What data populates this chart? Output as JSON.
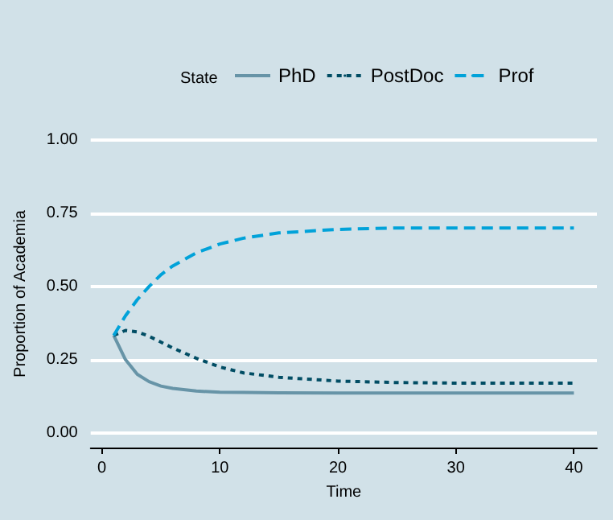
{
  "chart_data": {
    "type": "line",
    "xlabel": "Time",
    "ylabel": "Proportion of Academia",
    "legend_title": "State",
    "legend": "top",
    "grid": "y",
    "marker": "none",
    "xlim": [
      -0.95,
      41.95
    ],
    "xticks": [
      0,
      10,
      20,
      30,
      40
    ],
    "ylim": [
      -0.05,
      1
    ],
    "yticks": [
      {
        "value": 0,
        "label": "0.00"
      },
      {
        "value": 0.25,
        "label": "0.25"
      },
      {
        "value": 0.5,
        "label": "0.50"
      },
      {
        "value": 0.75,
        "label": "0.75"
      },
      {
        "value": 1,
        "label": "1.00"
      }
    ],
    "x": [
      1,
      2,
      3,
      4,
      5,
      6,
      8,
      10,
      12,
      15,
      20,
      25,
      30,
      40
    ],
    "series": [
      {
        "name": "PhD",
        "color": "#6794a7",
        "line_style": "solid",
        "values": [
          0.333,
          0.25,
          0.2,
          0.175,
          0.16,
          0.152,
          0.143,
          0.139,
          0.138,
          0.137,
          0.136,
          0.136,
          0.136,
          0.136
        ]
      },
      {
        "name": "PostDoc",
        "color": "#014d64",
        "line_style": "dotted",
        "values": [
          0.333,
          0.35,
          0.345,
          0.33,
          0.31,
          0.29,
          0.255,
          0.225,
          0.205,
          0.19,
          0.177,
          0.172,
          0.17,
          0.17
        ]
      },
      {
        "name": "Prof",
        "color": "#01a2d9",
        "line_style": "dashed",
        "values": [
          0.333,
          0.4,
          0.455,
          0.5,
          0.54,
          0.57,
          0.615,
          0.645,
          0.665,
          0.683,
          0.695,
          0.7,
          0.7,
          0.7
        ]
      }
    ]
  }
}
